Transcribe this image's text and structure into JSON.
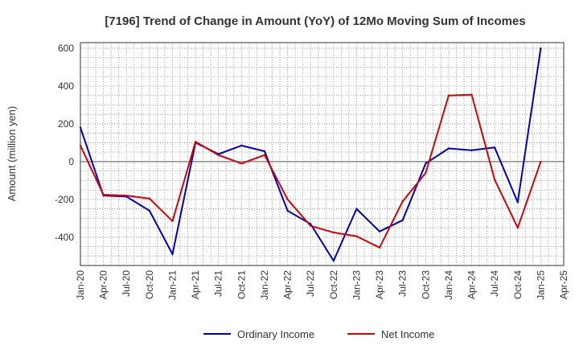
{
  "chart_data": {
    "type": "line",
    "title": "[7196]  Trend of Change in Amount (YoY) of 12Mo Moving Sum of Incomes",
    "xlabel": "",
    "ylabel": "Amount (million yen)",
    "ylim": [
      -550,
      630
    ],
    "yticks": [
      600,
      400,
      200,
      0,
      -200,
      -400
    ],
    "x_tick_labels": [
      "Jan-20",
      "Apr-20",
      "Jul-20",
      "Oct-20",
      "Jan-21",
      "Apr-21",
      "Jul-21",
      "Oct-21",
      "Jan-22",
      "Apr-22",
      "Jul-22",
      "Oct-22",
      "Jan-23",
      "Apr-23",
      "Jul-23",
      "Oct-23",
      "Jan-24",
      "Apr-24",
      "Jul-24",
      "Oct-24",
      "Jan-25",
      "Apr-25"
    ],
    "grid": true,
    "legend_position": "bottom",
    "series": [
      {
        "name": "Ordinary Income",
        "color": "#0000cc",
        "values": [
          180,
          -180,
          -185,
          -260,
          -490,
          100,
          40,
          85,
          55,
          -260,
          -330,
          -525,
          -250,
          -370,
          -310,
          -10,
          70,
          60,
          75,
          -215,
          600
        ]
      },
      {
        "name": "Net Income",
        "color": "#dd0000",
        "values": [
          85,
          -175,
          -180,
          -195,
          -315,
          105,
          35,
          -10,
          35,
          -200,
          -340,
          -375,
          -395,
          -455,
          -210,
          -60,
          350,
          355,
          -95,
          -350,
          0
        ]
      }
    ]
  }
}
